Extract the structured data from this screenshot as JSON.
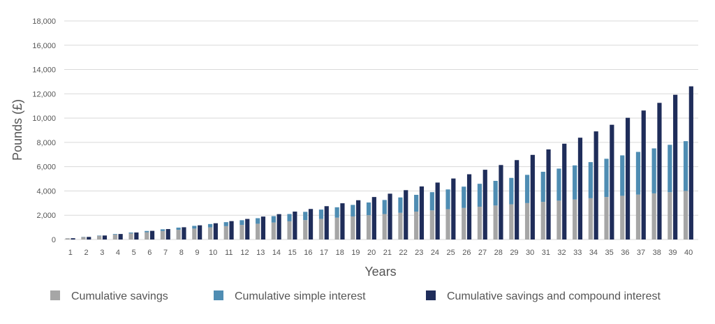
{
  "chart_data": {
    "type": "bar",
    "xlabel": "Years",
    "ylabel": "Pounds (£)",
    "ylim": [
      0,
      18000
    ],
    "yticks": [
      0,
      2000,
      4000,
      6000,
      8000,
      10000,
      12000,
      14000,
      16000,
      18000
    ],
    "ytick_labels": [
      "0",
      "2,000",
      "4,000",
      "6,000",
      "8,000",
      "10,000",
      "12,000",
      "14,000",
      "16,000",
      "18,000"
    ],
    "grid": true,
    "legend_position": "bottom",
    "categories": [
      "1",
      "2",
      "3",
      "4",
      "5",
      "6",
      "7",
      "8",
      "9",
      "10",
      "11",
      "12",
      "13",
      "14",
      "15",
      "16",
      "17",
      "18",
      "19",
      "20",
      "21",
      "22",
      "23",
      "24",
      "25",
      "26",
      "27",
      "28",
      "29",
      "30",
      "31",
      "32",
      "33",
      "34",
      "35",
      "36",
      "37",
      "38",
      "39",
      "40"
    ],
    "series": [
      {
        "name": "Cumulative savings",
        "color": "#a6a6a6",
        "stack": "simple",
        "values": [
          100,
          200,
          300,
          400,
          500,
          600,
          700,
          800,
          900,
          1000,
          1100,
          1200,
          1300,
          1400,
          1500,
          1600,
          1700,
          1800,
          1900,
          2000,
          2100,
          2200,
          2300,
          2400,
          2500,
          2600,
          2700,
          2800,
          2900,
          3000,
          3100,
          3200,
          3300,
          3400,
          3500,
          3600,
          3700,
          3800,
          3900,
          4000
        ]
      },
      {
        "name": "Cumulative simple interest",
        "color": "#4f8db3",
        "stack": "simple",
        "values": [
          5,
          15,
          30,
          50,
          75,
          105,
          140,
          180,
          225,
          275,
          330,
          390,
          455,
          525,
          600,
          680,
          765,
          855,
          950,
          1050,
          1155,
          1265,
          1380,
          1500,
          1625,
          1755,
          1890,
          2030,
          2175,
          2325,
          2480,
          2640,
          2805,
          2975,
          3150,
          3330,
          3515,
          3705,
          3900,
          4100
        ]
      },
      {
        "name": "Cumulative savings and compound interest",
        "color": "#1f2d5a",
        "stack": "compound",
        "values": [
          105,
          215,
          330,
          455,
          580,
          715,
          860,
          1010,
          1170,
          1340,
          1515,
          1695,
          1890,
          2090,
          2300,
          2515,
          2745,
          2985,
          3235,
          3500,
          3775,
          4065,
          4370,
          4690,
          5025,
          5375,
          5745,
          6135,
          6540,
          6970,
          7420,
          7890,
          8385,
          8905,
          9450,
          10025,
          10625,
          11255,
          11920,
          12615
        ]
      }
    ]
  }
}
